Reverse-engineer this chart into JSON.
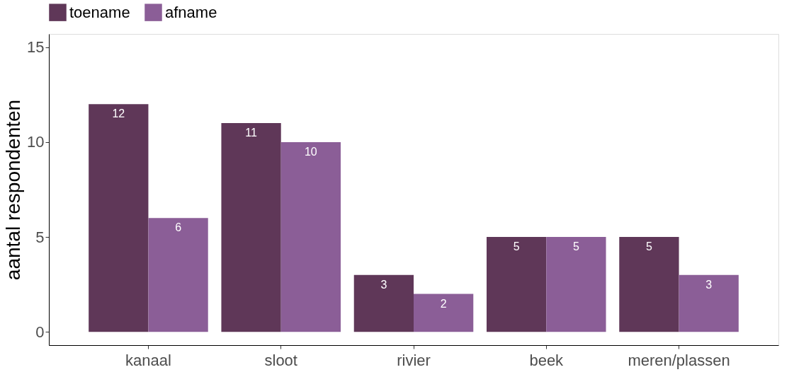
{
  "chart_data": {
    "type": "bar",
    "ylabel": "aantal respondenten",
    "categories": [
      "kanaal",
      "sloot",
      "rivier",
      "beek",
      "meren/plassen"
    ],
    "series": [
      {
        "name": "toename",
        "color": "#5f3758",
        "values": [
          12,
          11,
          3,
          5,
          5
        ]
      },
      {
        "name": "afname",
        "color": "#8b5e97",
        "values": [
          6,
          10,
          2,
          5,
          3
        ]
      }
    ],
    "ylim": [
      -0.7,
      15.7
    ],
    "yticks": [
      0,
      5,
      10,
      15
    ],
    "grid": false,
    "legend": "top",
    "data_labels": true
  }
}
